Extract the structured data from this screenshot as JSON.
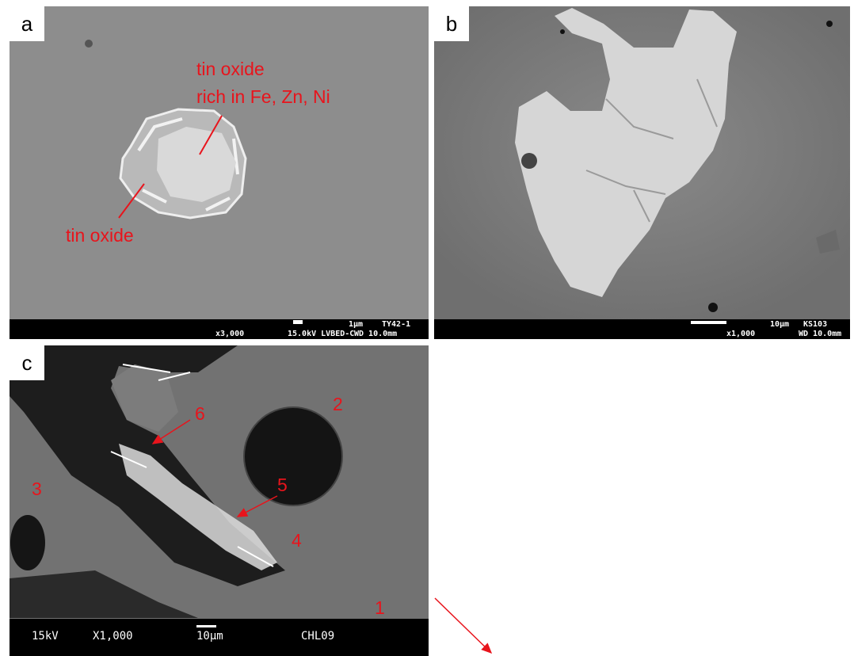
{
  "panels": [
    {
      "label": "a",
      "annotations": [
        "tin oxide",
        "rich in Fe, Zn, Ni",
        "tin oxide"
      ],
      "info_bar": {
        "scale": "1μm",
        "sample": "TY42-1",
        "magnification": "x3,000",
        "conditions": "15.0kV LVBED-C",
        "working_distance": "WD 10.0mm"
      }
    },
    {
      "label": "b",
      "info_bar": {
        "scale": "10μm",
        "sample": "KS103",
        "magnification": "x1,000",
        "working_distance": "WD 10.0mm"
      }
    },
    {
      "label": "c",
      "annotations": [
        "2",
        "6",
        "3",
        "5",
        "4",
        "1"
      ],
      "info_bar": {
        "voltage": "15kV",
        "magnification": "X1,000",
        "scale": "10μm",
        "sample": "CHL09"
      }
    }
  ]
}
